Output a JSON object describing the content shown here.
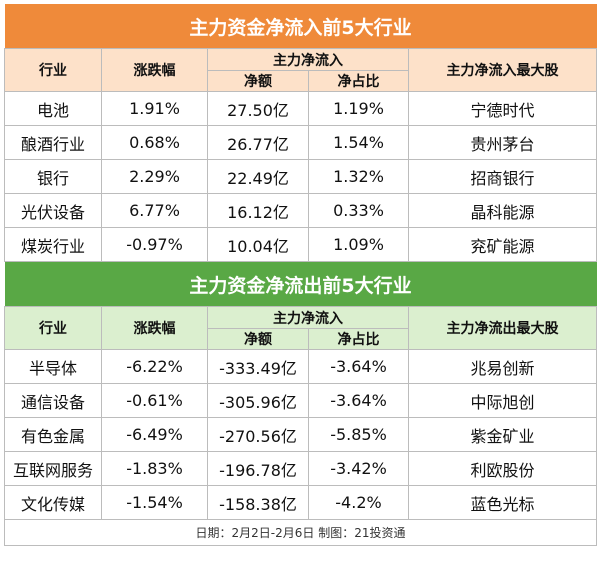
{
  "inflow": {
    "title": "主力资金净流入前5大行业",
    "headers": {
      "industry": "行业",
      "change": "涨跌幅",
      "main_flow": "主力净流入",
      "net_amount": "净额",
      "net_ratio": "净占比",
      "top_stock": "主力净流入最大股"
    },
    "rows": [
      {
        "industry": "电池",
        "change": "1.91%",
        "net_amount": "27.50亿",
        "net_ratio": "1.19%",
        "top_stock": "宁德时代"
      },
      {
        "industry": "酿酒行业",
        "change": "0.68%",
        "net_amount": "26.77亿",
        "net_ratio": "1.54%",
        "top_stock": "贵州茅台"
      },
      {
        "industry": "银行",
        "change": "2.29%",
        "net_amount": "22.49亿",
        "net_ratio": "1.32%",
        "top_stock": "招商银行"
      },
      {
        "industry": "光伏设备",
        "change": "6.77%",
        "net_amount": "16.12亿",
        "net_ratio": "0.33%",
        "top_stock": "晶科能源"
      },
      {
        "industry": "煤炭行业",
        "change": "-0.97%",
        "net_amount": "10.04亿",
        "net_ratio": "1.09%",
        "top_stock": "兖矿能源"
      }
    ]
  },
  "outflow": {
    "title": "主力资金净流出前5大行业",
    "headers": {
      "industry": "行业",
      "change": "涨跌幅",
      "main_flow": "主力净流入",
      "net_amount": "净额",
      "net_ratio": "净占比",
      "top_stock": "主力净流出最大股"
    },
    "rows": [
      {
        "industry": "半导体",
        "change": "-6.22%",
        "net_amount": "-333.49亿",
        "net_ratio": "-3.64%",
        "top_stock": "兆易创新"
      },
      {
        "industry": "通信设备",
        "change": "-0.61%",
        "net_amount": "-305.96亿",
        "net_ratio": "-3.64%",
        "top_stock": "中际旭创"
      },
      {
        "industry": "有色金属",
        "change": "-6.49%",
        "net_amount": "-270.56亿",
        "net_ratio": "-5.85%",
        "top_stock": "紫金矿业"
      },
      {
        "industry": "互联网服务",
        "change": "-1.83%",
        "net_amount": "-196.78亿",
        "net_ratio": "-3.42%",
        "top_stock": "利欧股份"
      },
      {
        "industry": "文化传媒",
        "change": "-1.54%",
        "net_amount": "-158.38亿",
        "net_ratio": "-4.2%",
        "top_stock": "蓝色光标"
      }
    ]
  },
  "footer": "日期：2月2日-2月6日 制图：21投资通",
  "colors": {
    "inflow_title_bg": "#ef8a3a",
    "inflow_header_bg": "#fde1c9",
    "outflow_title_bg": "#59a845",
    "outflow_header_bg": "#dbefcf"
  }
}
